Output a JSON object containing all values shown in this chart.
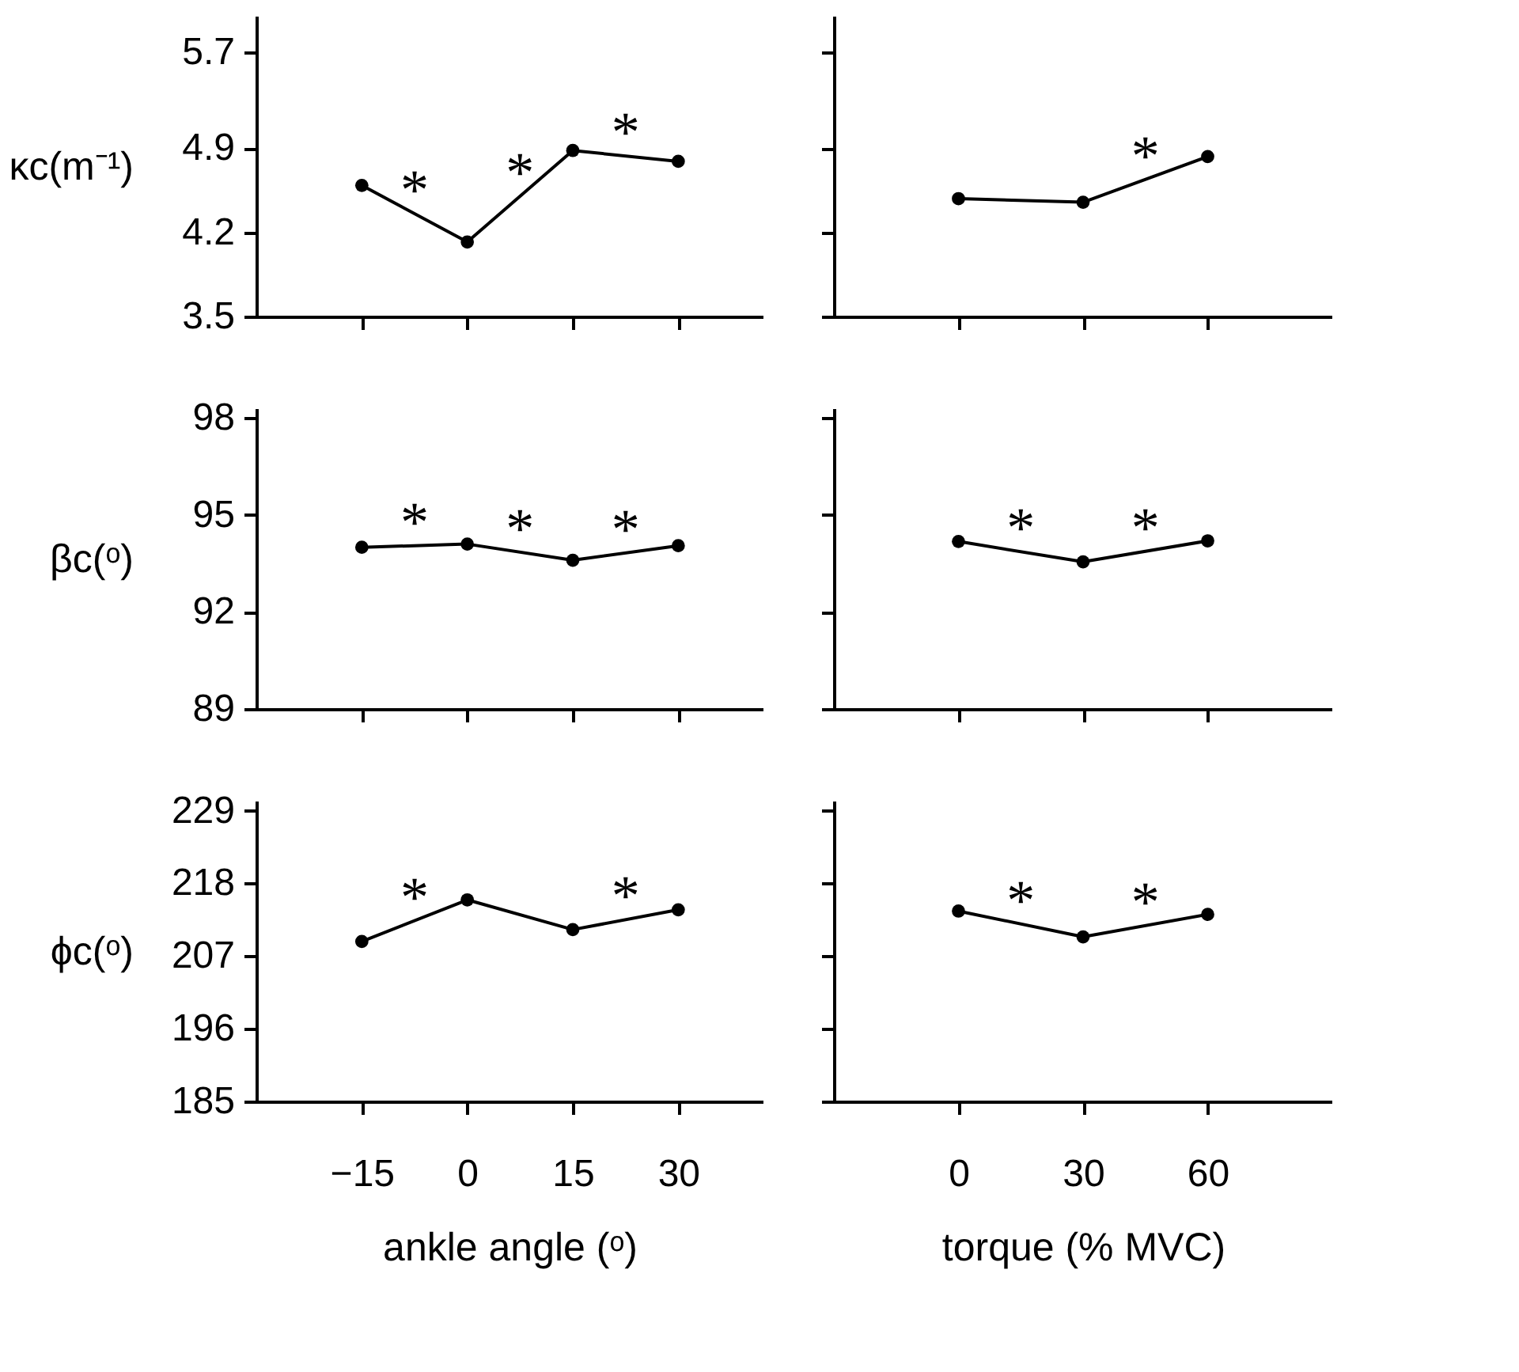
{
  "chart_data": [
    {
      "type": "line",
      "ylabel": "κc(m⁻¹)",
      "x": [
        -15,
        0,
        15,
        30
      ],
      "values": [
        4.59,
        4.12,
        4.88,
        4.79
      ],
      "color": "#000000",
      "marker": "circle",
      "xlim": [
        -30,
        42
      ],
      "xticks": [
        -15,
        0,
        15,
        30
      ],
      "ylim": [
        3.5,
        6.0
      ],
      "yticks": [
        3.5,
        4.2,
        4.9,
        5.7
      ],
      "tick_labels": "y",
      "annotations": [
        {
          "text": "*",
          "x": -7.5,
          "y": 4.355
        },
        {
          "text": "*",
          "x": 7.5,
          "y": 4.5
        },
        {
          "text": "*",
          "x": 22.5,
          "y": 4.835
        }
      ]
    },
    {
      "type": "line",
      "x": [
        0,
        30,
        60
      ],
      "values": [
        4.48,
        4.45,
        4.83
      ],
      "color": "#000000",
      "marker": "circle",
      "xlim": [
        -30,
        90
      ],
      "xticks": [
        0,
        30,
        60
      ],
      "ylim": [
        3.5,
        6.0
      ],
      "yticks": [
        3.5,
        4.2,
        4.9,
        5.7
      ],
      "tick_labels": false,
      "annotations": [
        {
          "text": "*",
          "x": 45,
          "y": 4.64
        }
      ]
    },
    {
      "type": "line",
      "ylabel": "βc(ᵒ)",
      "x": [
        -15,
        0,
        15,
        30
      ],
      "values": [
        94.0,
        94.1,
        93.6,
        94.05
      ],
      "color": "#000000",
      "marker": "circle",
      "xlim": [
        -30,
        42
      ],
      "xticks": [
        -15,
        0,
        15,
        30
      ],
      "ylim": [
        89,
        98.3
      ],
      "yticks": [
        89,
        92,
        95,
        98
      ],
      "tick_labels": "y",
      "annotations": [
        {
          "text": "*",
          "x": -7.5,
          "y": 94.05
        },
        {
          "text": "*",
          "x": 7.5,
          "y": 93.85
        },
        {
          "text": "*",
          "x": 22.5,
          "y": 93.825
        }
      ]
    },
    {
      "type": "line",
      "x": [
        0,
        30,
        60
      ],
      "values": [
        94.18,
        93.55,
        94.2
      ],
      "color": "#000000",
      "marker": "circle",
      "xlim": [
        -30,
        90
      ],
      "xticks": [
        0,
        30,
        60
      ],
      "ylim": [
        89,
        98.3
      ],
      "yticks": [
        89,
        92,
        95,
        98
      ],
      "tick_labels": false,
      "annotations": [
        {
          "text": "*",
          "x": 15,
          "y": 93.865
        },
        {
          "text": "*",
          "x": 45,
          "y": 93.875
        }
      ]
    },
    {
      "type": "line",
      "ylabel": "ϕc(ᵒ)",
      "xlabel": "ankle angle (ᵒ)",
      "x": [
        -15,
        0,
        15,
        30
      ],
      "values": [
        209.2,
        215.5,
        211.0,
        214.0
      ],
      "color": "#000000",
      "marker": "circle",
      "xlim": [
        -30,
        42
      ],
      "xticks": [
        -15,
        0,
        15,
        30
      ],
      "ylim": [
        185,
        230.5
      ],
      "yticks": [
        185,
        196,
        207,
        218,
        229
      ],
      "annotations": [
        {
          "text": "*",
          "x": -7.5,
          "y": 212.35
        },
        {
          "text": "*",
          "x": 22.5,
          "y": 212.5
        }
      ]
    },
    {
      "type": "line",
      "xlabel": "torque (% MVC)",
      "x": [
        0,
        30,
        60
      ],
      "values": [
        213.8,
        209.9,
        213.3
      ],
      "color": "#000000",
      "marker": "circle",
      "xlim": [
        -30,
        90
      ],
      "xticks": [
        0,
        30,
        60
      ],
      "ylim": [
        185,
        230.5
      ],
      "yticks": [
        185,
        196,
        207,
        218,
        229
      ],
      "tick_labels": "x",
      "annotations": [
        {
          "text": "*",
          "x": 15,
          "y": 211.85
        },
        {
          "text": "*",
          "x": 45,
          "y": 211.6
        }
      ]
    }
  ]
}
